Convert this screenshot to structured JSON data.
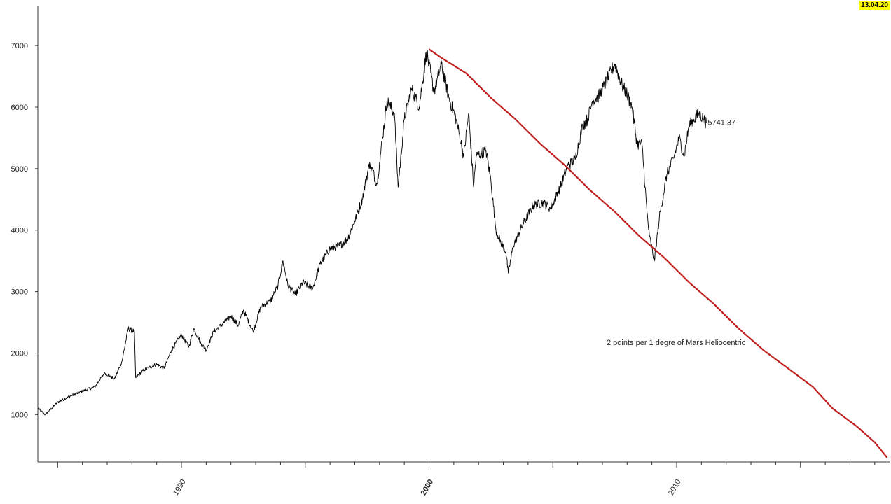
{
  "date_label": "13.04.20",
  "colors": {
    "price": "#000000",
    "mars": "#c0201f",
    "axis": "#333333",
    "highlight_year": "#8b0000",
    "badge": "#ffff00"
  },
  "chart_data": {
    "type": "line",
    "title": "",
    "xlabel": "",
    "ylabel": "",
    "xlim": [
      1984.2,
      2018.6
    ],
    "ylim": [
      230,
      7650
    ],
    "y_ticks": [
      1000,
      2000,
      3000,
      4000,
      5000,
      6000,
      7000
    ],
    "x_tick_labels": [
      {
        "year": 1990,
        "label": "1990",
        "highlight": false
      },
      {
        "year": 2000,
        "label": "2000",
        "highlight": true
      },
      {
        "year": 2010,
        "label": "2010",
        "highlight": false
      }
    ],
    "last_value_label": "5741.37",
    "annotation": "2 points per 1 degre of Mars Heliocentric",
    "series": [
      {
        "style": "price",
        "points": [
          [
            1984.2,
            1100
          ],
          [
            1984.5,
            1000
          ],
          [
            1985.0,
            1200
          ],
          [
            1985.5,
            1300
          ],
          [
            1986.0,
            1380
          ],
          [
            1986.5,
            1450
          ],
          [
            1986.9,
            1680
          ],
          [
            1987.3,
            1580
          ],
          [
            1987.6,
            1870
          ],
          [
            1987.85,
            2400
          ],
          [
            1988.1,
            2350
          ],
          [
            1988.15,
            1600
          ],
          [
            1988.5,
            1730
          ],
          [
            1989.0,
            1820
          ],
          [
            1989.3,
            1750
          ],
          [
            1989.6,
            2050
          ],
          [
            1990.0,
            2300
          ],
          [
            1990.3,
            2100
          ],
          [
            1990.5,
            2400
          ],
          [
            1990.8,
            2150
          ],
          [
            1991.0,
            2050
          ],
          [
            1991.3,
            2350
          ],
          [
            1991.6,
            2450
          ],
          [
            1992.0,
            2600
          ],
          [
            1992.3,
            2450
          ],
          [
            1992.5,
            2700
          ],
          [
            1992.9,
            2350
          ],
          [
            1993.2,
            2750
          ],
          [
            1993.6,
            2850
          ],
          [
            1993.9,
            3100
          ],
          [
            1994.1,
            3500
          ],
          [
            1994.3,
            3100
          ],
          [
            1994.6,
            2950
          ],
          [
            1994.9,
            3150
          ],
          [
            1995.3,
            3050
          ],
          [
            1995.6,
            3450
          ],
          [
            1996.0,
            3700
          ],
          [
            1996.4,
            3750
          ],
          [
            1996.7,
            3850
          ],
          [
            1997.0,
            4150
          ],
          [
            1997.3,
            4500
          ],
          [
            1997.6,
            5100
          ],
          [
            1997.9,
            4750
          ],
          [
            1998.0,
            5100
          ],
          [
            1998.3,
            6100
          ],
          [
            1998.6,
            5900
          ],
          [
            1998.75,
            4700
          ],
          [
            1999.0,
            5800
          ],
          [
            1999.3,
            6300
          ],
          [
            1999.6,
            6000
          ],
          [
            1999.9,
            6900
          ],
          [
            2000.2,
            6250
          ],
          [
            2000.5,
            6700
          ],
          [
            2000.8,
            6150
          ],
          [
            2001.1,
            5800
          ],
          [
            2001.4,
            5200
          ],
          [
            2001.6,
            5900
          ],
          [
            2001.8,
            4700
          ],
          [
            2001.9,
            5200
          ],
          [
            2002.3,
            5300
          ],
          [
            2002.5,
            4800
          ],
          [
            2002.7,
            4000
          ],
          [
            2002.9,
            3800
          ],
          [
            2003.1,
            3650
          ],
          [
            2003.2,
            3300
          ],
          [
            2003.4,
            3750
          ],
          [
            2003.8,
            4100
          ],
          [
            2004.2,
            4400
          ],
          [
            2004.6,
            4450
          ],
          [
            2004.9,
            4350
          ],
          [
            2005.3,
            4700
          ],
          [
            2005.6,
            5050
          ],
          [
            2005.9,
            5150
          ],
          [
            2006.2,
            5700
          ],
          [
            2006.4,
            5800
          ],
          [
            2006.6,
            6100
          ],
          [
            2006.9,
            6200
          ],
          [
            2007.2,
            6450
          ],
          [
            2007.5,
            6700
          ],
          [
            2007.8,
            6350
          ],
          [
            2008.0,
            6200
          ],
          [
            2008.2,
            6000
          ],
          [
            2008.4,
            5400
          ],
          [
            2008.6,
            5400
          ],
          [
            2008.8,
            4300
          ],
          [
            2008.9,
            3900
          ],
          [
            2009.1,
            3500
          ],
          [
            2009.3,
            4200
          ],
          [
            2009.6,
            4900
          ],
          [
            2009.9,
            5200
          ],
          [
            2010.1,
            5500
          ],
          [
            2010.3,
            5200
          ],
          [
            2010.5,
            5700
          ],
          [
            2010.7,
            5800
          ],
          [
            2010.9,
            5900
          ],
          [
            2011.1,
            5800
          ],
          [
            2011.2,
            5741
          ]
        ]
      },
      {
        "style": "mars",
        "points": [
          [
            2000.0,
            6940
          ],
          [
            2000.5,
            6800
          ],
          [
            2001.5,
            6550
          ],
          [
            2002.5,
            6150
          ],
          [
            2003.5,
            5800
          ],
          [
            2004.5,
            5400
          ],
          [
            2005.5,
            5050
          ],
          [
            2006.5,
            4650
          ],
          [
            2007.5,
            4300
          ],
          [
            2008.5,
            3900
          ],
          [
            2009.5,
            3550
          ],
          [
            2010.5,
            3150
          ],
          [
            2011.5,
            2800
          ],
          [
            2012.5,
            2400
          ],
          [
            2013.5,
            2050
          ],
          [
            2014.5,
            1750
          ],
          [
            2015.5,
            1450
          ],
          [
            2016.3,
            1100
          ],
          [
            2017.3,
            800
          ],
          [
            2018.0,
            550
          ],
          [
            2018.5,
            300
          ]
        ]
      }
    ]
  }
}
